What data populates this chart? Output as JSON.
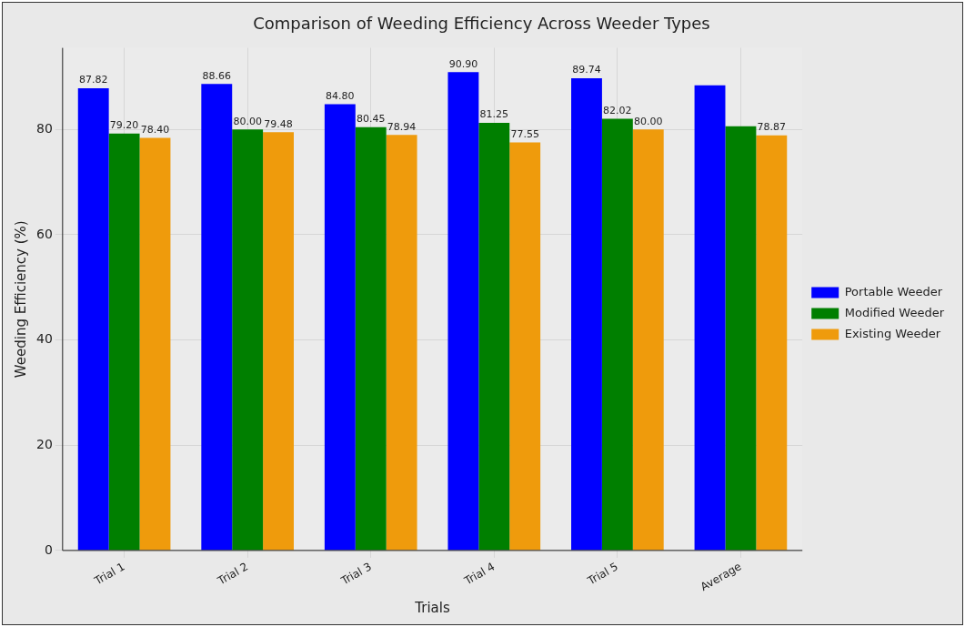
{
  "chart_data": {
    "type": "bar",
    "title": "Comparison of Weeding Efficiency Across Weeder Types",
    "xlabel": "Trials",
    "ylabel": "Weeding Efficiency (%)",
    "categories": [
      "Trial 1",
      "Trial 2",
      "Trial 3",
      "Trial 4",
      "Trial 5",
      "Average"
    ],
    "series": [
      {
        "name": "Portable Weeder",
        "color": "#0000ff",
        "values": [
          87.82,
          88.66,
          84.8,
          90.9,
          89.74,
          88.4
        ],
        "value_labels": [
          "87.82",
          "88.66",
          "84.80",
          "90.90",
          "89.74",
          null
        ]
      },
      {
        "name": "Modified Weeder",
        "color": "#007f00",
        "values": [
          79.2,
          80.0,
          80.45,
          81.25,
          82.02,
          80.6
        ],
        "value_labels": [
          "79.20",
          "80.00",
          "80.45",
          "81.25",
          "82.02",
          null
        ]
      },
      {
        "name": "Existing Weeder",
        "color": "#ef9b0c",
        "values": [
          78.4,
          79.48,
          78.94,
          77.55,
          80.0,
          78.87
        ],
        "value_labels": [
          "78.40",
          "79.48",
          "78.94",
          "77.55",
          "80.00",
          "78.87"
        ]
      }
    ],
    "ylim": [
      0,
      95.5
    ],
    "yticks": [
      0,
      20,
      40,
      60,
      80
    ],
    "grid": true,
    "legend": "right"
  }
}
